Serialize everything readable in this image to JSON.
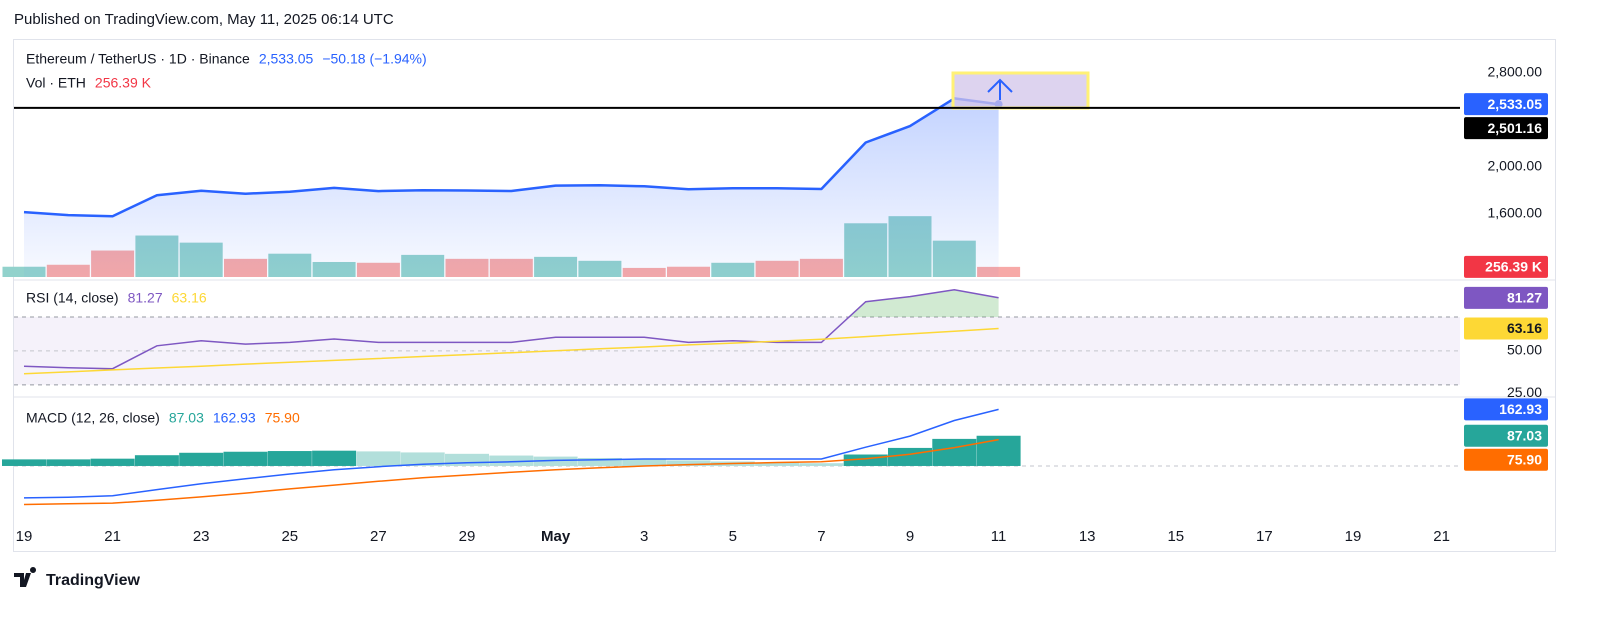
{
  "header": {
    "published": "Published on TradingView.com, May 11, 2025 06:14 UTC"
  },
  "footer": {
    "brand": "TradingView"
  },
  "chart_data": [
    {
      "type": "area",
      "title": "Ethereum / TetherUS · 1D · Binance",
      "change": "−50.18 (−1.94%)",
      "categories": [
        "19",
        null,
        "21",
        null,
        "23",
        null,
        "25",
        null,
        "27",
        null,
        "29",
        null,
        "May",
        null,
        "3",
        null,
        "5",
        null,
        "7",
        null,
        "9",
        null,
        "11",
        null,
        "13",
        null,
        "15",
        null,
        "17",
        null,
        "19",
        null,
        "21"
      ],
      "color": "#2962ff",
      "values": [
        1613,
        1588,
        1578,
        1757,
        1795,
        1770,
        1786,
        1819,
        1792,
        1799,
        1797,
        1793,
        1839,
        1842,
        1833,
        1808,
        1817,
        1816,
        1810,
        2206,
        2346,
        2582,
        2533.05,
        null,
        null,
        null,
        null,
        null,
        null,
        null,
        null,
        null,
        null
      ],
      "value_labels": [
        null,
        null,
        null,
        null,
        null,
        null,
        null,
        null,
        null,
        null,
        null,
        null,
        null,
        null,
        null,
        null,
        null,
        null,
        null,
        null,
        null,
        null,
        "2,533.05",
        null,
        null,
        null,
        null,
        null,
        null,
        null,
        null,
        null,
        null
      ],
      "ylim": [
        1060,
        3080
      ],
      "yticks": [
        {
          "value": 1600,
          "label": "1,600.00"
        },
        {
          "value": 2000,
          "label": "2,000.00"
        },
        {
          "value": 2800,
          "label": "2,800.00"
        }
      ],
      "hline": {
        "value": 2501.16,
        "label": "2,501.16"
      },
      "volume": {
        "name": "Vol · ETH",
        "color": "#f23645",
        "ylim": [
          0,
          6000000
        ],
        "values": [
          260000,
          310000,
          670000,
          1050000,
          870000,
          460000,
          590000,
          380000,
          360000,
          560000,
          460000,
          460000,
          510000,
          410000,
          230000,
          260000,
          360000,
          410000,
          460000,
          1360000,
          1540000,
          920000,
          256390,
          null,
          null,
          null,
          null,
          null,
          null,
          null,
          null,
          null,
          null
        ],
        "value_labels": [
          null,
          null,
          null,
          null,
          null,
          null,
          null,
          null,
          null,
          null,
          null,
          null,
          null,
          null,
          null,
          null,
          null,
          null,
          null,
          null,
          null,
          null,
          "256.39 K",
          null,
          null,
          null,
          null,
          null,
          null,
          null,
          null,
          null,
          null
        ],
        "colors": [
          "#92d2cc",
          "#f7a9a7",
          "#f7a9a7",
          "#92d2cc",
          "#92d2cc",
          "#f7a9a7",
          "#92d2cc",
          "#92d2cc",
          "#f7a9a7",
          "#92d2cc",
          "#f7a9a7",
          "#f7a9a7",
          "#92d2cc",
          "#92d2cc",
          "#f7a9a7",
          "#f7a9a7",
          "#92d2cc",
          "#f7a9a7",
          "#f7a9a7",
          "#92d2cc",
          "#92d2cc",
          "#92d2cc",
          "#f7a9a7",
          null,
          null,
          null,
          null,
          null,
          null,
          null,
          null,
          null,
          null
        ]
      }
    },
    {
      "type": "line",
      "title": "RSI (14, close)",
      "series": [
        {
          "color": "#7e57c2",
          "values": [
            41,
            40,
            39.5,
            53,
            56,
            54,
            55,
            57,
            55,
            55,
            55,
            55,
            58,
            58,
            58,
            55,
            56,
            55,
            55,
            79,
            82,
            86,
            81.27,
            null,
            null,
            null,
            null,
            null,
            null,
            null,
            null,
            null,
            null
          ]
        },
        {
          "color": "#fdd835",
          "values": [
            36.5,
            37.6,
            38.8,
            39.9,
            41,
            42.2,
            43.3,
            44.4,
            45.5,
            46.7,
            47.8,
            48.9,
            50.1,
            51.2,
            52.3,
            53.5,
            54.6,
            55.7,
            56.8,
            58.4,
            60,
            61.6,
            63.16,
            null,
            null,
            null,
            null,
            null,
            null,
            null,
            null,
            null,
            null
          ]
        }
      ],
      "ylim": [
        24,
        90
      ],
      "yticks": [
        {
          "value": 50,
          "label": "50.00"
        },
        {
          "value": 25,
          "label": "25.00"
        }
      ],
      "band": [
        30,
        70
      ],
      "midline": 50
    },
    {
      "type": "macd",
      "title": "MACD (12, 26, close)",
      "histogram": {
        "rising_color": "#26a69a",
        "falling_color": "#b2dfdb",
        "values": [
          19,
          19,
          21,
          31,
          38,
          41,
          43,
          44,
          42,
          39,
          35,
          30,
          27,
          23,
          20,
          16,
          13,
          10,
          8,
          33,
          52,
          78,
          87.03,
          null,
          null,
          null,
          null,
          null,
          null,
          null,
          null,
          null,
          null
        ]
      },
      "series": [
        {
          "color": "#2962ff",
          "values": [
            -92,
            -90,
            -86,
            -68,
            -51,
            -37,
            -23,
            -11,
            -2,
            5,
            9,
            12,
            16,
            18,
            20,
            20,
            20,
            20,
            20,
            54,
            86,
            131,
            162.93,
            null,
            null,
            null,
            null,
            null,
            null,
            null,
            null,
            null,
            null
          ]
        },
        {
          "color": "#ff6d00",
          "values": [
            -111,
            -109,
            -107,
            -99,
            -89,
            -78,
            -66,
            -55,
            -44,
            -34,
            -26,
            -18,
            -11,
            -5,
            0,
            4,
            7,
            10,
            12,
            21,
            34,
            53,
            75.9,
            null,
            null,
            null,
            null,
            null,
            null,
            null,
            null,
            null,
            null
          ],
          "value_labels": [
            null,
            null,
            null,
            null,
            null,
            null,
            null,
            null,
            null,
            null,
            null,
            null,
            null,
            null,
            null,
            null,
            null,
            null,
            null,
            null,
            null,
            null,
            "75.90",
            null,
            null,
            null,
            null,
            null,
            null,
            null,
            null,
            null,
            null
          ]
        }
      ],
      "ylim": [
        -170,
        190
      ],
      "zero_line": true
    }
  ]
}
